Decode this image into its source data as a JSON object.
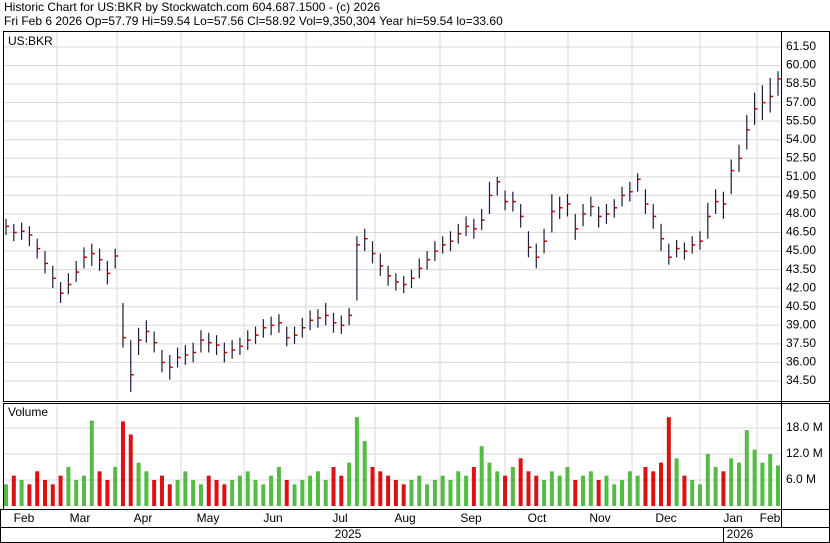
{
  "chart_data": {
    "type": "ohlc",
    "title": "Historic Chart for US:BKR by Stockwatch.com 604.687.1500 - (c) 2026",
    "subtitle": "Fri Feb  6 2026  Op=57.79  Hi=59.54  Lo=57.56  Cl=58.92  Vol=9,350,304  Year hi=59.54  lo=33.60",
    "symbol": "US:BKR",
    "volume_label": "Volume",
    "months": [
      "Feb",
      "Mar",
      "Apr",
      "May",
      "Jun",
      "Jul",
      "Aug",
      "Sep",
      "Oct",
      "Nov",
      "Dec",
      "Jan",
      "Feb"
    ],
    "years": [
      "2025",
      "2026"
    ],
    "ylim": [
      32.96,
      62.71
    ],
    "yticks": [
      {
        "value": 61.5,
        "label": "61.50"
      },
      {
        "value": 60,
        "label": "60.00"
      },
      {
        "value": 58.5,
        "label": "58.50"
      },
      {
        "value": 57,
        "label": "57.00"
      },
      {
        "value": 55.5,
        "label": "55.50"
      },
      {
        "value": 54,
        "label": "54.00"
      },
      {
        "value": 52.5,
        "label": "52.50"
      },
      {
        "value": 51,
        "label": "51.00"
      },
      {
        "value": 49.5,
        "label": "49.50"
      },
      {
        "value": 48,
        "label": "48.00"
      },
      {
        "value": 46.5,
        "label": "46.50"
      },
      {
        "value": 45,
        "label": "45.00"
      },
      {
        "value": 43.5,
        "label": "43.50"
      },
      {
        "value": 42,
        "label": "42.00"
      },
      {
        "value": 40.5,
        "label": "40.50"
      },
      {
        "value": 39,
        "label": "39.00"
      },
      {
        "value": 37.5,
        "label": "37.50"
      },
      {
        "value": 36,
        "label": "36.00"
      },
      {
        "value": 34.5,
        "label": "34.50"
      }
    ],
    "y2lim": [
      0,
      23.3
    ],
    "y2ticks": [
      {
        "value": 18,
        "label": "18.0 M"
      },
      {
        "value": 12,
        "label": "12.0 M"
      },
      {
        "value": 6,
        "label": "6.0 M"
      }
    ],
    "bar_color": "#1a1a40",
    "close_color": "#cc0000",
    "up_color": "#55bb44",
    "down_color": "#dd1111",
    "grid": true,
    "close": [
      47.0,
      46.5,
      46.6,
      46.3,
      45.2,
      44.0,
      42.8,
      41.6,
      42.3,
      43.3,
      44.5,
      44.8,
      44.3,
      43.2,
      44.6,
      38.0,
      35.0,
      37.8,
      38.5,
      37.6,
      36.0,
      35.6,
      36.4,
      36.6,
      36.8,
      37.8,
      37.6,
      37.4,
      36.8,
      37.0,
      37.3,
      37.8,
      38.2,
      38.8,
      39.0,
      39.2,
      38.0,
      38.2,
      38.8,
      39.4,
      39.6,
      39.8,
      39.2,
      39.0,
      39.8,
      45.5,
      46.0,
      44.8,
      43.8,
      43.0,
      42.5,
      42.3,
      42.8,
      43.6,
      44.3,
      45.0,
      45.5,
      45.8,
      46.4,
      47.0,
      46.8,
      47.5,
      49.5,
      50.6,
      49.0,
      49.0,
      47.8,
      45.3,
      44.5,
      45.8,
      48.2,
      48.5,
      48.8,
      46.8,
      48.0,
      48.6,
      47.8,
      48.0,
      48.5,
      49.5,
      49.8,
      50.8,
      48.8,
      47.8,
      46.0,
      44.5,
      45.2,
      45.0,
      45.5,
      45.8,
      47.8,
      49.0,
      48.8,
      51.5,
      52.5,
      54.8,
      56.5,
      57.0,
      57.5,
      58.92
    ],
    "high": [
      47.6,
      47.2,
      47.3,
      47.0,
      46.0,
      45.0,
      43.8,
      42.5,
      43.2,
      44.2,
      45.3,
      45.6,
      45.2,
      44.2,
      45.2,
      40.8,
      37.8,
      38.8,
      39.4,
      38.5,
      37.0,
      36.6,
      37.2,
      37.4,
      37.6,
      38.6,
      38.4,
      38.2,
      37.6,
      37.8,
      38.0,
      38.6,
      38.9,
      39.5,
      39.7,
      39.9,
      38.9,
      38.9,
      39.6,
      40.2,
      40.3,
      40.8,
      40.0,
      39.8,
      40.4,
      46.2,
      46.8,
      45.8,
      44.8,
      43.8,
      43.2,
      43.0,
      43.5,
      44.4,
      45.0,
      45.8,
      46.2,
      46.6,
      47.2,
      47.8,
      47.6,
      48.4,
      50.6,
      51.0,
      49.9,
      49.8,
      48.8,
      46.6,
      45.6,
      46.8,
      49.6,
      49.4,
      49.6,
      48.0,
      48.8,
      49.4,
      48.6,
      48.8,
      49.2,
      50.2,
      50.6,
      51.3,
      50.0,
      48.8,
      47.2,
      45.6,
      45.9,
      45.7,
      46.2,
      46.6,
      48.9,
      50.0,
      49.8,
      52.4,
      53.6,
      56.0,
      57.8,
      58.4,
      59.0,
      59.54
    ],
    "low": [
      46.3,
      45.8,
      45.9,
      45.4,
      44.4,
      43.2,
      42.0,
      40.8,
      41.5,
      42.5,
      43.6,
      43.8,
      43.4,
      42.3,
      43.6,
      37.2,
      33.6,
      36.6,
      37.6,
      36.8,
      35.2,
      34.6,
      35.6,
      35.8,
      36.0,
      36.8,
      36.8,
      36.6,
      36.0,
      36.3,
      36.6,
      37.0,
      37.5,
      38.0,
      38.2,
      38.4,
      37.3,
      37.5,
      38.0,
      38.6,
      38.8,
      39.0,
      38.4,
      38.3,
      39.0,
      41.0,
      45.0,
      44.0,
      43.0,
      42.2,
      41.8,
      41.6,
      42.0,
      42.8,
      43.5,
      44.2,
      44.8,
      45.0,
      45.6,
      46.2,
      46.0,
      46.7,
      48.0,
      49.5,
      48.3,
      48.2,
      46.9,
      44.5,
      43.6,
      44.8,
      46.5,
      47.6,
      47.8,
      45.9,
      47.0,
      47.8,
      46.9,
      47.2,
      47.7,
      48.6,
      49.0,
      49.8,
      48.0,
      46.8,
      45.0,
      43.9,
      44.5,
      44.3,
      44.8,
      45.1,
      46.0,
      48.0,
      47.6,
      49.6,
      51.4,
      53.2,
      55.2,
      55.6,
      56.2,
      57.56
    ],
    "volume": [
      5,
      7,
      6,
      5,
      8,
      6,
      5,
      7,
      9,
      6,
      7,
      19.7,
      8,
      6,
      9,
      19.5,
      16.5,
      10,
      8,
      6,
      7,
      5,
      6,
      8,
      6,
      5,
      7,
      6,
      5,
      6,
      7,
      8,
      6,
      5,
      7,
      9,
      6,
      5,
      6,
      7,
      8,
      6,
      9,
      7,
      10,
      20.5,
      15,
      9,
      8,
      7,
      6,
      5,
      6,
      7,
      5,
      6,
      7,
      6,
      8,
      7,
      9,
      13.8,
      10,
      8,
      7,
      9,
      11,
      8,
      7,
      6,
      8,
      7,
      9,
      6,
      7,
      8,
      6,
      7,
      5,
      6,
      8,
      7,
      9,
      8,
      10,
      20.5,
      11,
      7,
      6,
      5,
      12,
      9,
      8,
      11,
      10,
      17.5,
      13,
      10,
      12,
      9.35
    ]
  }
}
